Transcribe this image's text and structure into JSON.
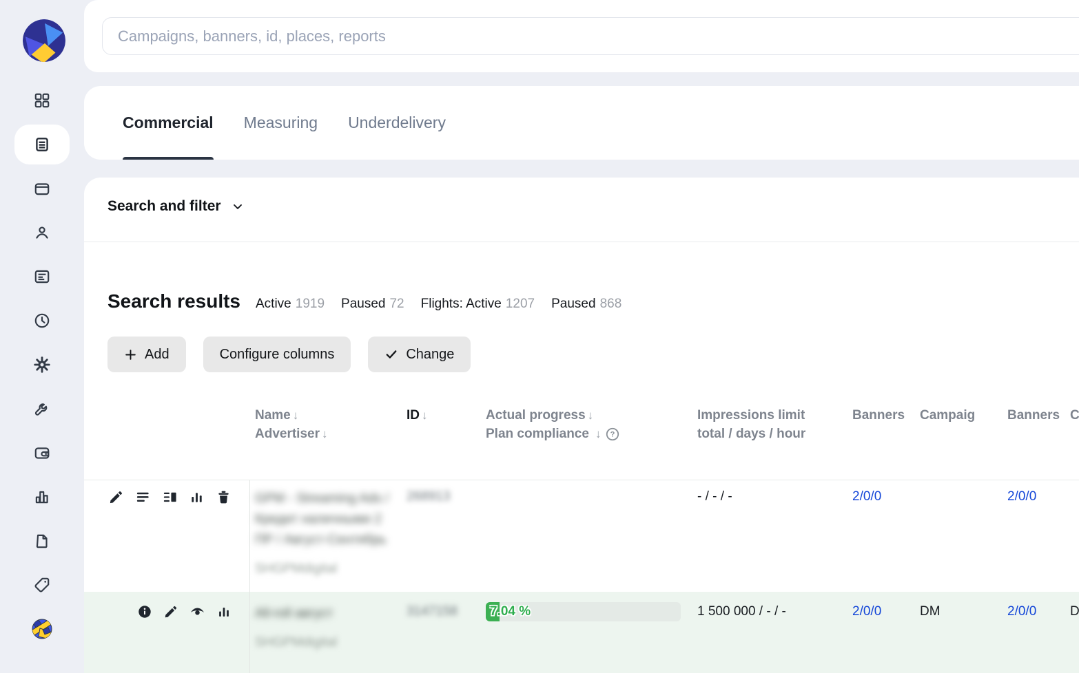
{
  "search": {
    "placeholder": "Campaigns, banners, id, places, reports"
  },
  "sidebar": {
    "items": [
      "dashboard",
      "campaigns",
      "places",
      "advertisers",
      "banners",
      "history",
      "settings",
      "tools",
      "wallet",
      "reports",
      "documents",
      "tags",
      "network"
    ],
    "active_item": "campaigns"
  },
  "tabs": {
    "items": [
      {
        "label": "Commercial",
        "active": true
      },
      {
        "label": "Measuring",
        "active": false
      },
      {
        "label": "Underdelivery",
        "active": false
      }
    ]
  },
  "filter": {
    "label": "Search and filter"
  },
  "results": {
    "title": "Search results",
    "stats": [
      {
        "label": "Active",
        "value": "1919"
      },
      {
        "label": "Paused",
        "value": "72"
      },
      {
        "label": "Flights: Active",
        "value": "1207"
      },
      {
        "label": "Paused",
        "value": "868"
      }
    ],
    "actions": {
      "add": "Add",
      "configure_columns": "Configure columns",
      "change": "Change"
    }
  },
  "table": {
    "sort_arrow": "↓",
    "help_glyph": "?",
    "headers": {
      "name": "Name",
      "advertiser": "Advertiser",
      "id": "ID",
      "actual_progress": "Actual progress",
      "plan_compliance": "Plan compliance",
      "impressions_limit": "Impressions limit total / days / hour",
      "banners": "Banners",
      "campaign": "Campaig",
      "banners2": "Banners",
      "campaign2": "C"
    },
    "rows": [
      {
        "name": "GPM - Streaming Ads / Кредит наличными 2 ПР / Август-Сентябрь",
        "advertiser": "SHGPMdigital",
        "id": "268913",
        "impressions": "- / - / -",
        "banners": "2/0/0",
        "campaign": "",
        "banners2": "2/0/0",
        "campaign2": ""
      },
      {
        "name": "All-roll август",
        "advertiser": "SHGPMdigital",
        "id": "3147158",
        "progress": "7.04 %",
        "progress_pct": 7.04,
        "impressions": "1 500 000 / - / -",
        "banners": "2/0/0",
        "campaign": "DM",
        "banners2": "2/0/0",
        "campaign2": "D"
      }
    ]
  },
  "colors": {
    "accent_blue": "#1446d8",
    "progress_green": "#3cb053",
    "row_highlight": "#edf5ef",
    "tab_underline": "#2b3443",
    "background": "#edeff5"
  }
}
